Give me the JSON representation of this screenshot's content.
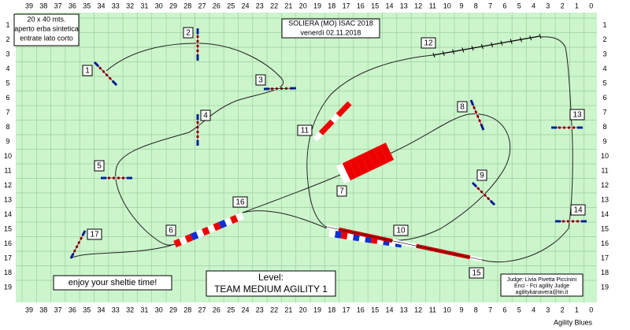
{
  "header": {
    "field_info": [
      "20 x 40 mts.",
      "aperto erba  sintetica",
      "entrate lato corto"
    ],
    "event": [
      "SOLIERA (MO) ISAC 2018",
      "venerdì 02.11.2018"
    ]
  },
  "grid": {
    "columns": [
      39,
      38,
      37,
      36,
      35,
      34,
      33,
      32,
      31,
      30,
      29,
      28,
      27,
      26,
      25,
      24,
      23,
      22,
      21,
      20,
      19,
      18,
      17,
      16,
      15,
      14,
      13,
      12,
      11,
      10,
      9,
      8,
      7,
      6,
      5,
      4,
      3,
      2,
      1,
      0
    ],
    "rows": [
      1,
      2,
      3,
      4,
      5,
      6,
      7,
      8,
      9,
      10,
      11,
      12,
      13,
      14,
      15,
      16,
      17,
      18,
      19
    ]
  },
  "obstacle_numbers": [
    1,
    2,
    3,
    4,
    5,
    6,
    7,
    8,
    9,
    10,
    11,
    12,
    13,
    14,
    15,
    16,
    17
  ],
  "footer": {
    "motto": "enjoy your sheltie time!",
    "level_label": "Level:",
    "level": "TEAM MEDIUM AGILITY 1",
    "judge": [
      "Judge: Livia Pivetta Piccinini",
      "Enci - Fci agility Judge",
      "agilitykanavera@tin.it"
    ],
    "brand": "Agility Blues"
  }
}
